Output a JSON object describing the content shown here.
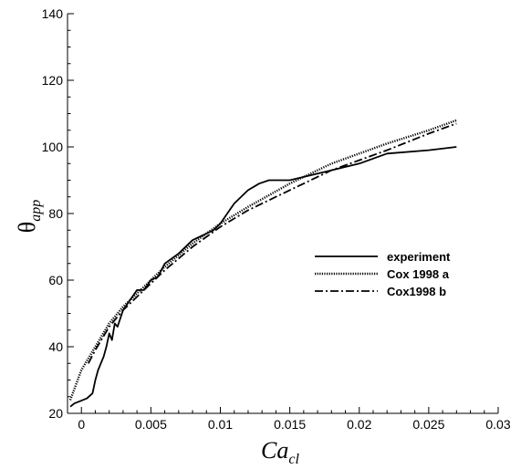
{
  "chart_data": {
    "type": "line",
    "xlabel": "Ca",
    "xlabel_sub": "cl",
    "ylabel": "θ",
    "ylabel_sub": "app",
    "xlim": [
      -0.001,
      0.03
    ],
    "ylim": [
      20,
      140
    ],
    "x_ticks": [
      0,
      0.005,
      0.01,
      0.015,
      0.02,
      0.025,
      0.03
    ],
    "x_tick_labels": [
      "0",
      "0.005",
      "0.01",
      "0.015",
      "0.02",
      "0.025",
      "0.03"
    ],
    "y_ticks": [
      20,
      40,
      60,
      80,
      100,
      120,
      140
    ],
    "y_tick_labels": [
      "20",
      "40",
      "60",
      "80",
      "100",
      "120",
      "140"
    ],
    "grid": false,
    "legend_position": "right",
    "series": [
      {
        "name": "experiment",
        "style": "solid",
        "x": [
          -0.0008,
          -0.0005,
          0.0,
          0.0004,
          0.0008,
          0.001,
          0.0012,
          0.0014,
          0.0016,
          0.0018,
          0.002,
          0.0022,
          0.0024,
          0.0026,
          0.003,
          0.0035,
          0.004,
          0.0045,
          0.005,
          0.0055,
          0.006,
          0.007,
          0.008,
          0.009,
          0.0095,
          0.01,
          0.011,
          0.012,
          0.0128,
          0.0135,
          0.0145,
          0.015,
          0.016,
          0.017,
          0.018,
          0.02,
          0.022,
          0.025,
          0.027
        ],
        "y": [
          22,
          23,
          23.8,
          24.5,
          26,
          30,
          33,
          35,
          37,
          40,
          44,
          42,
          47,
          46,
          51,
          54,
          57,
          57,
          60,
          61,
          65,
          68,
          72,
          74,
          75,
          77,
          83,
          87,
          89,
          90,
          90,
          90,
          91,
          92,
          93,
          95,
          98,
          99,
          100
        ]
      },
      {
        "name": "Cox 1998 a",
        "style": "dotted",
        "x": [
          -0.0008,
          0.0,
          0.001,
          0.002,
          0.003,
          0.004,
          0.005,
          0.006,
          0.008,
          0.01,
          0.012,
          0.015,
          0.018,
          0.02,
          0.022,
          0.025,
          0.027
        ],
        "y": [
          24,
          33,
          40,
          47,
          52,
          56,
          60,
          64,
          71,
          77,
          82,
          89,
          95,
          98,
          101,
          105,
          108
        ]
      },
      {
        "name": "Cox1998 b",
        "style": "dash-dot",
        "x": [
          0.0005,
          0.001,
          0.002,
          0.003,
          0.004,
          0.005,
          0.006,
          0.008,
          0.01,
          0.012,
          0.015,
          0.018,
          0.02,
          0.022,
          0.025,
          0.027
        ],
        "y": [
          35,
          39,
          46,
          51,
          55,
          59,
          63,
          70,
          76,
          81,
          87,
          93,
          96,
          99,
          104,
          107
        ]
      }
    ]
  }
}
